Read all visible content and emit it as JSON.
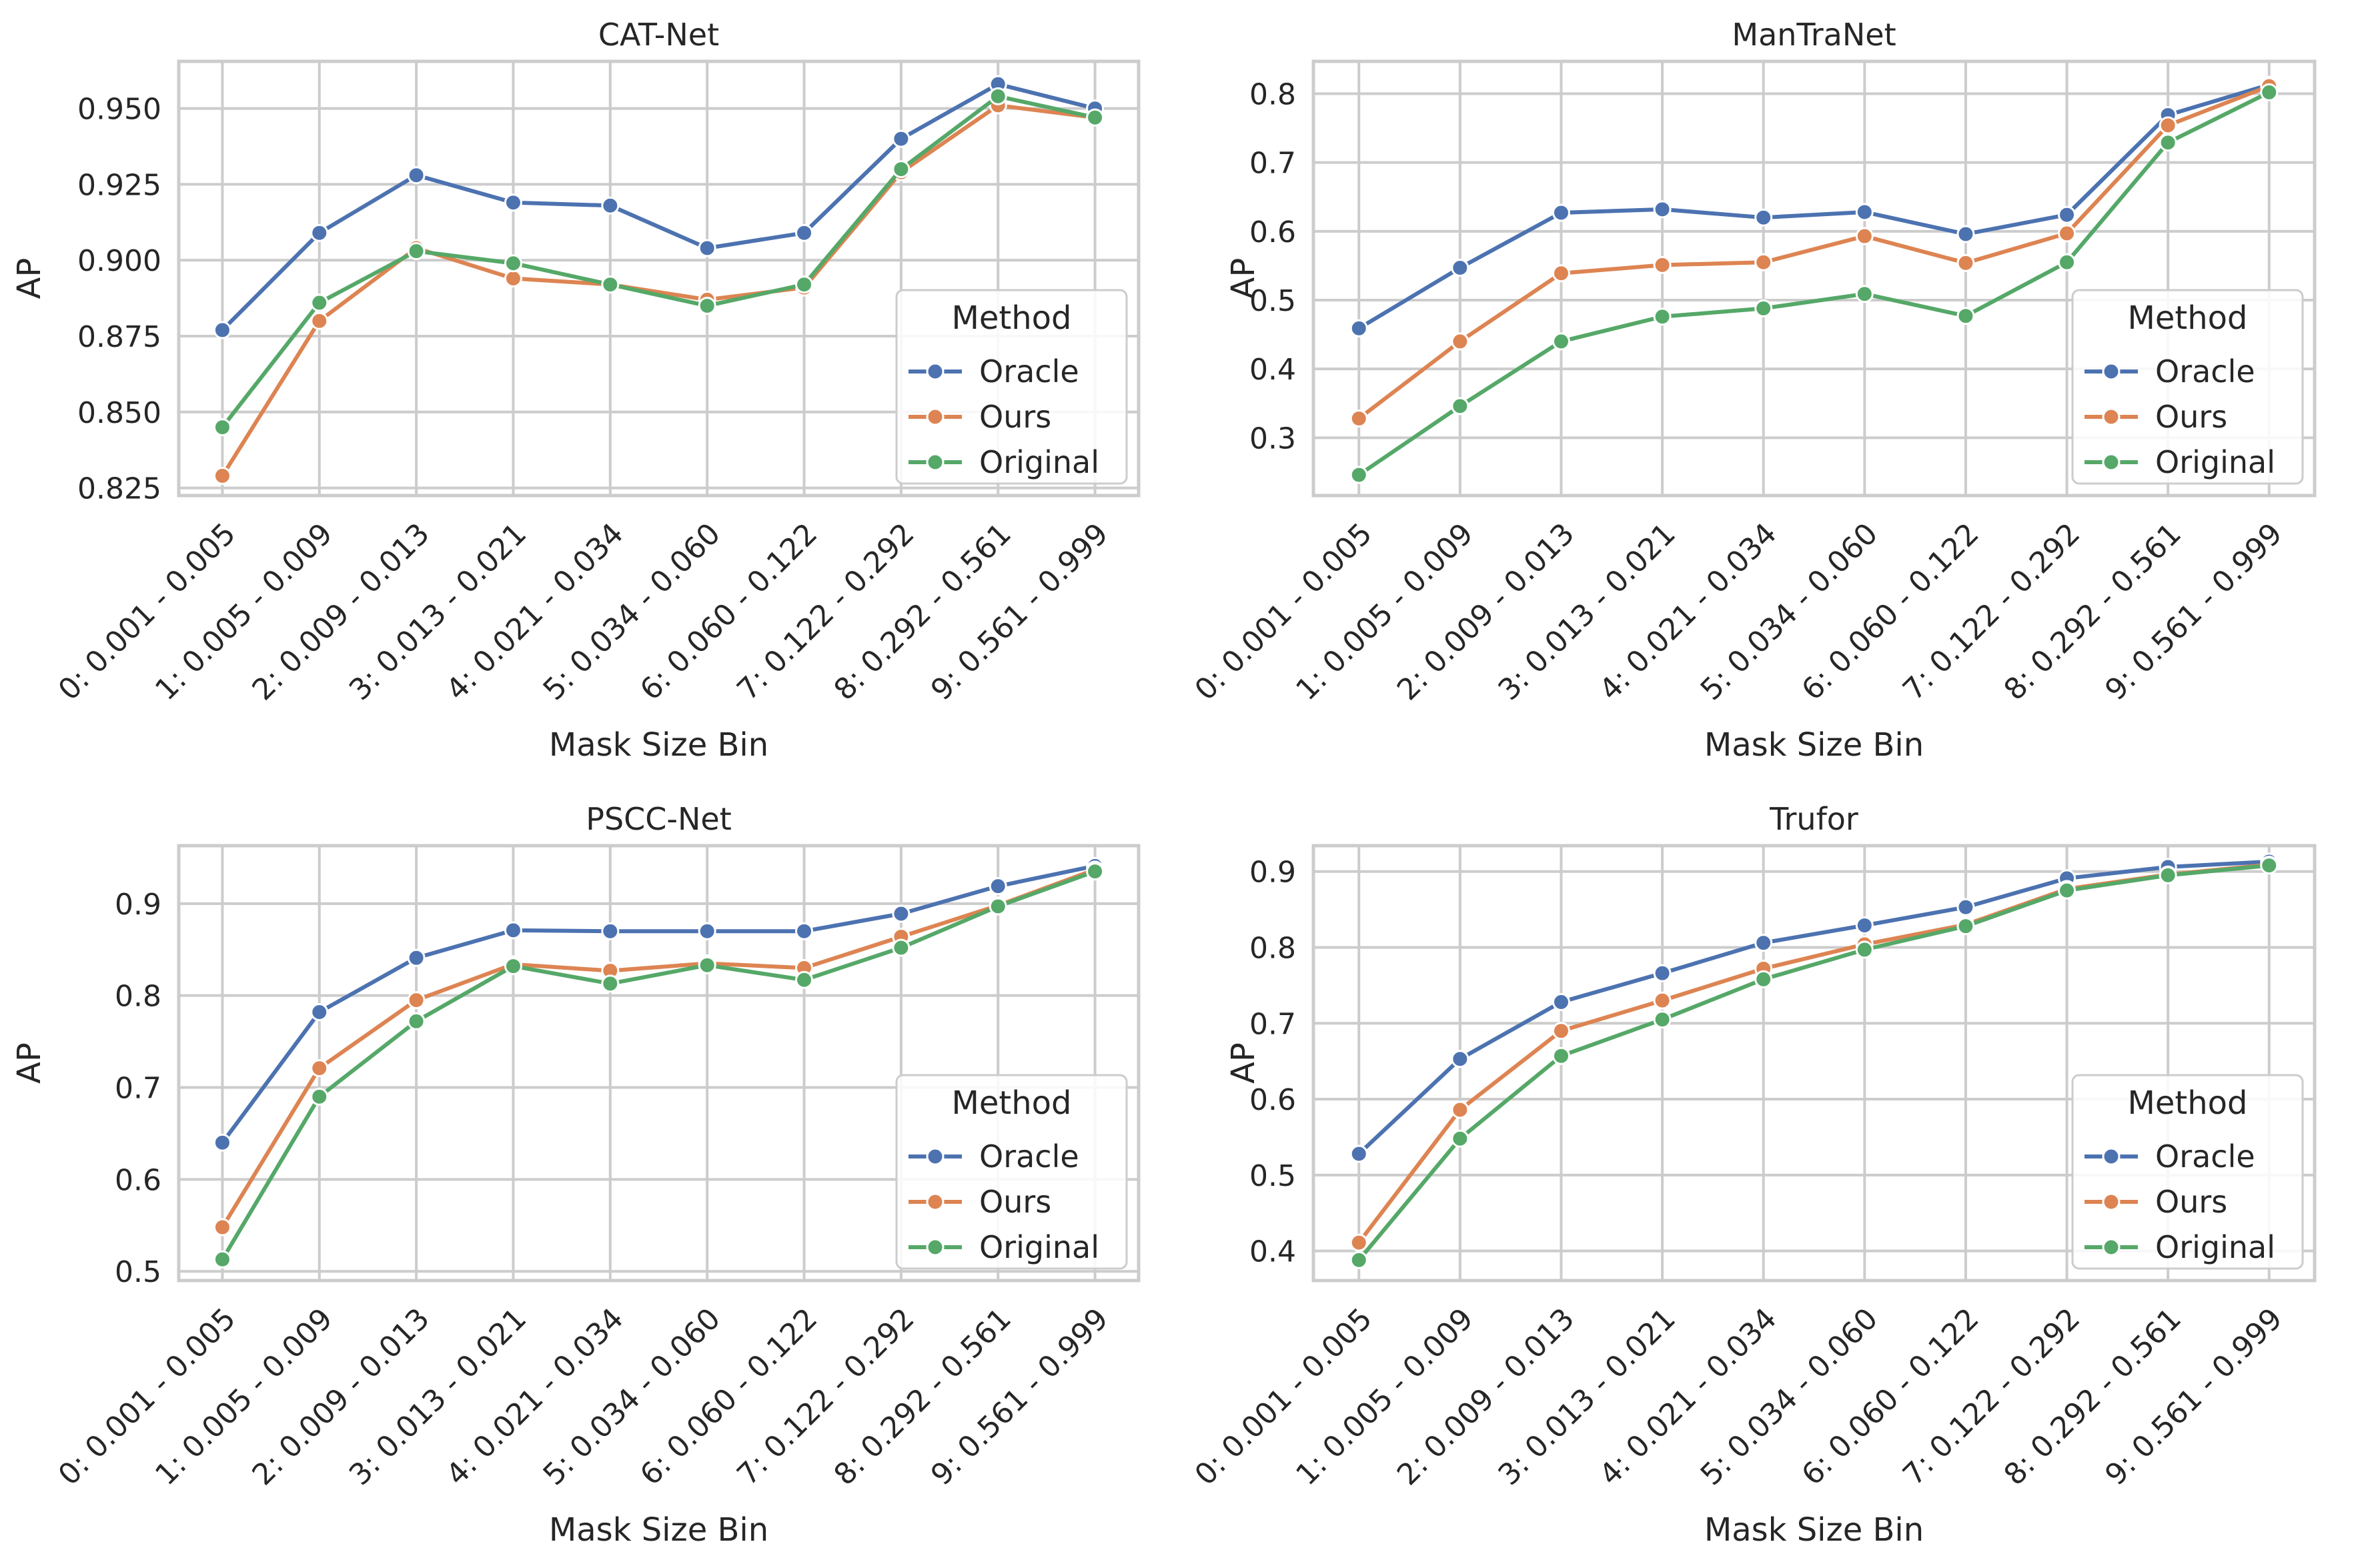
{
  "colors": {
    "Oracle": "#4c72b0",
    "Ours": "#dd8452",
    "Original": "#55a868",
    "grid": "#cccccc",
    "text": "#262626"
  },
  "chart_data": [
    {
      "type": "line",
      "title": "CAT-Net",
      "xlabel": "Mask Size Bin",
      "ylabel": "AP",
      "categories": [
        "0: 0.001 - 0.005",
        "1: 0.005 - 0.009",
        "2: 0.009 - 0.013",
        "3: 0.013 - 0.021",
        "4: 0.021 - 0.034",
        "5: 0.034 - 0.060",
        "6: 0.060 - 0.122",
        "7: 0.122 - 0.292",
        "8: 0.292 - 0.561",
        "9: 0.561 - 0.999"
      ],
      "ylim": [
        0.8225,
        0.9655
      ],
      "yticks": [
        0.825,
        0.85,
        0.875,
        0.9,
        0.925,
        0.95
      ],
      "ytick_labels": [
        "0.825",
        "0.850",
        "0.875",
        "0.900",
        "0.925",
        "0.950"
      ],
      "grid": true,
      "legend": {
        "title": "Method",
        "placement": "lower right"
      },
      "series": [
        {
          "name": "Oracle",
          "values": [
            0.877,
            0.909,
            0.928,
            0.919,
            0.918,
            0.904,
            0.909,
            0.94,
            0.958,
            0.95
          ]
        },
        {
          "name": "Ours",
          "values": [
            0.829,
            0.88,
            0.904,
            0.894,
            0.892,
            0.887,
            0.891,
            0.929,
            0.951,
            0.947
          ]
        },
        {
          "name": "Original",
          "values": [
            0.845,
            0.886,
            0.903,
            0.899,
            0.892,
            0.885,
            0.892,
            0.93,
            0.954,
            0.947
          ]
        }
      ]
    },
    {
      "type": "line",
      "title": "ManTraNet",
      "xlabel": "Mask Size Bin",
      "ylabel": "AP",
      "categories": [
        "0: 0.001 - 0.005",
        "1: 0.005 - 0.009",
        "2: 0.009 - 0.013",
        "3: 0.013 - 0.021",
        "4: 0.021 - 0.034",
        "5: 0.034 - 0.060",
        "6: 0.060 - 0.122",
        "7: 0.122 - 0.292",
        "8: 0.292 - 0.561",
        "9: 0.561 - 0.999"
      ],
      "ylim": [
        0.216,
        0.847
      ],
      "yticks": [
        0.3,
        0.4,
        0.5,
        0.6,
        0.7,
        0.8
      ],
      "ytick_labels": [
        "0.3",
        "0.4",
        "0.5",
        "0.6",
        "0.7",
        "0.8"
      ],
      "grid": true,
      "legend": {
        "title": "Method",
        "placement": "lower right"
      },
      "series": [
        {
          "name": "Oracle",
          "values": [
            0.459,
            0.547,
            0.627,
            0.632,
            0.62,
            0.628,
            0.596,
            0.624,
            0.769,
            0.813
          ]
        },
        {
          "name": "Ours",
          "values": [
            0.328,
            0.44,
            0.539,
            0.551,
            0.555,
            0.593,
            0.554,
            0.597,
            0.754,
            0.811
          ]
        },
        {
          "name": "Original",
          "values": [
            0.246,
            0.346,
            0.44,
            0.476,
            0.488,
            0.509,
            0.477,
            0.555,
            0.729,
            0.802
          ]
        }
      ]
    },
    {
      "type": "line",
      "title": "PSCC-Net",
      "xlabel": "Mask Size Bin",
      "ylabel": "AP",
      "categories": [
        "0: 0.001 - 0.005",
        "1: 0.005 - 0.009",
        "2: 0.009 - 0.013",
        "3: 0.013 - 0.021",
        "4: 0.021 - 0.034",
        "5: 0.034 - 0.060",
        "6: 0.060 - 0.122",
        "7: 0.122 - 0.292",
        "8: 0.292 - 0.561",
        "9: 0.561 - 0.999"
      ],
      "ylim": [
        0.49,
        0.963
      ],
      "yticks": [
        0.5,
        0.6,
        0.7,
        0.8,
        0.9
      ],
      "ytick_labels": [
        "0.5",
        "0.6",
        "0.7",
        "0.8",
        "0.9"
      ],
      "grid": true,
      "legend": {
        "title": "Method",
        "placement": "lower right"
      },
      "series": [
        {
          "name": "Oracle",
          "values": [
            0.64,
            0.782,
            0.841,
            0.871,
            0.87,
            0.87,
            0.87,
            0.889,
            0.919,
            0.941
          ]
        },
        {
          "name": "Ours",
          "values": [
            0.548,
            0.721,
            0.795,
            0.834,
            0.827,
            0.835,
            0.83,
            0.864,
            0.898,
            0.937
          ]
        },
        {
          "name": "Original",
          "values": [
            0.513,
            0.69,
            0.772,
            0.832,
            0.813,
            0.833,
            0.817,
            0.852,
            0.897,
            0.935
          ]
        }
      ]
    },
    {
      "type": "line",
      "title": "Trufor",
      "xlabel": "Mask Size Bin",
      "ylabel": "AP",
      "categories": [
        "0: 0.001 - 0.005",
        "1: 0.005 - 0.009",
        "2: 0.009 - 0.013",
        "3: 0.013 - 0.021",
        "4: 0.021 - 0.034",
        "5: 0.034 - 0.060",
        "6: 0.060 - 0.122",
        "7: 0.122 - 0.292",
        "8: 0.292 - 0.561",
        "9: 0.561 - 0.999"
      ],
      "ylim": [
        0.361,
        0.934
      ],
      "yticks": [
        0.4,
        0.5,
        0.6,
        0.7,
        0.8,
        0.9
      ],
      "ytick_labels": [
        "0.4",
        "0.5",
        "0.6",
        "0.7",
        "0.8",
        "0.9"
      ],
      "grid": true,
      "legend": {
        "title": "Method",
        "placement": "lower right"
      },
      "series": [
        {
          "name": "Oracle",
          "values": [
            0.528,
            0.653,
            0.728,
            0.766,
            0.806,
            0.829,
            0.853,
            0.891,
            0.906,
            0.913
          ]
        },
        {
          "name": "Ours",
          "values": [
            0.411,
            0.586,
            0.69,
            0.73,
            0.772,
            0.804,
            0.83,
            0.877,
            0.896,
            0.909
          ]
        },
        {
          "name": "Original",
          "values": [
            0.388,
            0.548,
            0.657,
            0.705,
            0.758,
            0.797,
            0.828,
            0.875,
            0.895,
            0.908
          ]
        }
      ]
    }
  ]
}
